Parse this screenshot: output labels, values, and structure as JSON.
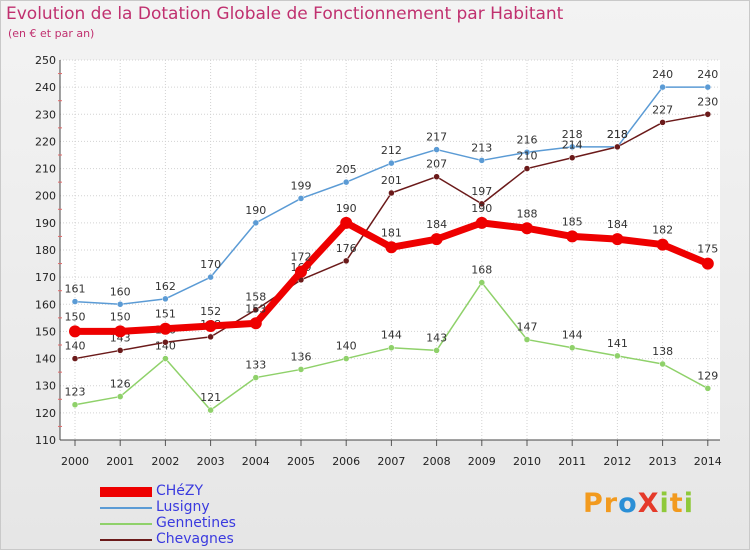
{
  "title": "Evolution de la Dotation Globale de Fonctionnement par Habitant",
  "subtitle": "(en € et par an)",
  "logo": {
    "text": "ProXiti",
    "letters": [
      {
        "ch": "P",
        "color": "#f29a1e"
      },
      {
        "ch": "r",
        "color": "#f29a1e"
      },
      {
        "ch": "o",
        "color": "#2a8fd6"
      },
      {
        "ch": "X",
        "color": "#e53a2a"
      },
      {
        "ch": "i",
        "color": "#8fc93a"
      },
      {
        "ch": "t",
        "color": "#f29a1e"
      },
      {
        "ch": "i",
        "color": "#8fc93a"
      }
    ]
  },
  "chart_data": {
    "type": "line",
    "categories": [
      "2000",
      "2001",
      "2002",
      "2003",
      "2004",
      "2005",
      "2006",
      "2007",
      "2008",
      "2009",
      "2010",
      "2011",
      "2012",
      "2013",
      "2014"
    ],
    "ylim": [
      110,
      250
    ],
    "yticks": [
      110,
      120,
      130,
      140,
      150,
      160,
      170,
      180,
      190,
      200,
      210,
      220,
      230,
      240,
      250
    ],
    "grid": true,
    "legend_position": "bottom-left",
    "series": [
      {
        "name": "Lusigny",
        "color": "#5b9bd5",
        "values": [
          161,
          160,
          162,
          170,
          190,
          199,
          205,
          212,
          217,
          213,
          216,
          218,
          218,
          240,
          240
        ]
      },
      {
        "name": "Gennetines",
        "color": "#8fd16a",
        "values": [
          123,
          126,
          140,
          121,
          133,
          136,
          140,
          144,
          143,
          168,
          147,
          144,
          141,
          138,
          129
        ]
      },
      {
        "name": "Chevagnes",
        "color": "#6b1a1a",
        "values": [
          140,
          143,
          146,
          148,
          158,
          169,
          176,
          201,
          207,
          197,
          210,
          214,
          218,
          227,
          230
        ]
      },
      {
        "name": "CHéZY",
        "color": "#ee0000",
        "values": [
          150,
          150,
          151,
          152,
          153,
          172,
          190,
          181,
          184,
          190,
          188,
          185,
          184,
          182,
          175
        ]
      }
    ]
  }
}
